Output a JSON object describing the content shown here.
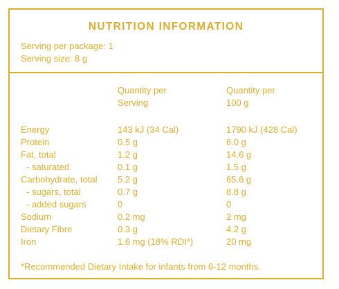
{
  "title": "NUTRITION INFORMATION",
  "serving": {
    "per_package": "Serving per package: 1",
    "size": "Serving size: 8 g"
  },
  "columns": {
    "per_serving": [
      "Quantity per",
      "Serving"
    ],
    "per_100g": [
      "Quantity per",
      "100 g"
    ]
  },
  "rows": [
    {
      "name": "Energy",
      "indent": false,
      "serving": "143 kJ (34 Cal)",
      "per100": "1790 kJ (428 Cal)"
    },
    {
      "name": "Protein",
      "indent": false,
      "serving": "0.5 g",
      "per100": "6.0 g"
    },
    {
      "name": "Fat, total",
      "indent": false,
      "serving": "1.2 g",
      "per100": "14.6 g"
    },
    {
      "name": "- saturated",
      "indent": true,
      "serving": "0.1 g",
      "per100": "1.5 g"
    },
    {
      "name": "Carbohydrate, total",
      "indent": false,
      "serving": "5.2 g",
      "per100": "65.6 g"
    },
    {
      "name": "- sugars, total",
      "indent": true,
      "serving": "0.7 g",
      "per100": "8.8 g"
    },
    {
      "name": "- added sugars",
      "indent": true,
      "serving": "0",
      "per100": "0"
    },
    {
      "name": "Sodium",
      "indent": false,
      "serving": "0.2 mg",
      "per100": "2 mg"
    },
    {
      "name": "Dietary Fibre",
      "indent": false,
      "serving": "0.3 g",
      "per100": "4.2 g"
    },
    {
      "name": "Iron",
      "indent": false,
      "serving": "1.6 mg (18% RDI*)",
      "per100": "20 mg"
    }
  ],
  "footnote": "*Recommended Dietary Intake for infants from 6-12 months.",
  "colors": {
    "accent": "#d9ae2f",
    "background": "#ffffff"
  }
}
